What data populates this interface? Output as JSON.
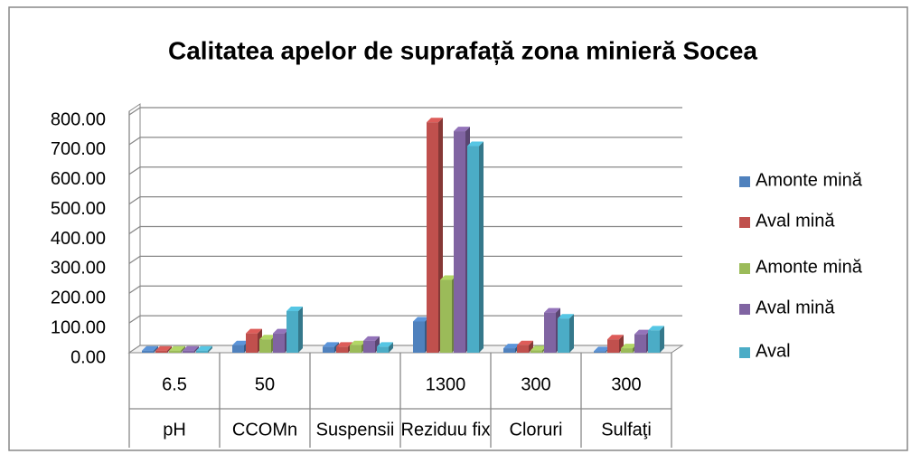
{
  "chart_data": {
    "type": "bar3d",
    "title": "Calitatea apelor de suprafață zona minieră Socea",
    "categories": [
      "pH",
      "CCOMn",
      "Suspensii",
      "Reziduu fix",
      "Cloruri",
      "Sulfaţi"
    ],
    "subcategories": [
      "6.5",
      "50",
      null,
      "1300",
      "300",
      "300"
    ],
    "series": [
      {
        "name": "Amonte mină",
        "color": "#4f81bd",
        "values": [
          7,
          25,
          20,
          105,
          15,
          5
        ]
      },
      {
        "name": "Aval mină",
        "color": "#c0504d",
        "values": [
          7,
          65,
          20,
          775,
          25,
          45
        ]
      },
      {
        "name": "Amonte mină",
        "color": "#9bbb59",
        "values": [
          7,
          45,
          25,
          245,
          8,
          15
        ]
      },
      {
        "name": "Aval mină",
        "color": "#8064a2",
        "values": [
          7,
          65,
          40,
          745,
          135,
          62
        ]
      },
      {
        "name": "Aval",
        "color": "#4bacc6",
        "values": [
          7,
          140,
          20,
          695,
          115,
          75
        ]
      }
    ],
    "ylim": [
      0,
      800
    ],
    "yticks": [
      {
        "value": 0,
        "label": "0.00"
      },
      {
        "value": 100,
        "label": "100.00"
      },
      {
        "value": 200,
        "label": "200.00"
      },
      {
        "value": 300,
        "label": "300.00"
      },
      {
        "value": 400,
        "label": "400.00"
      },
      {
        "value": 500,
        "label": "500.00"
      },
      {
        "value": 600,
        "label": "600.00"
      },
      {
        "value": 700,
        "label": "700.00"
      },
      {
        "value": 800,
        "label": "800.00"
      }
    ],
    "grid": true,
    "legend": "right"
  }
}
